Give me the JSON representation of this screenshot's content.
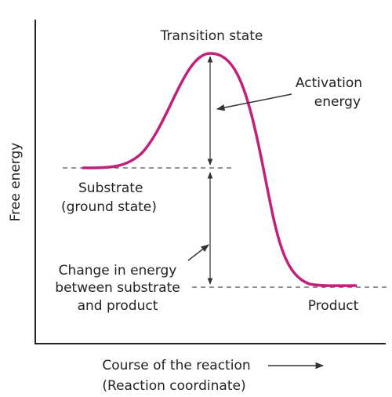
{
  "labels": {
    "transition_state": "Transition state",
    "activation_energy": [
      "Activation",
      "energy"
    ],
    "substrate": [
      "Substrate",
      "(ground state)"
    ],
    "change_in_energy": [
      "Change in energy",
      "between substrate",
      "and product"
    ],
    "product": "Product",
    "y_axis": "Free energy",
    "x_axis": [
      "Course of the reaction",
      "(Reaction coordinate)"
    ]
  }
}
